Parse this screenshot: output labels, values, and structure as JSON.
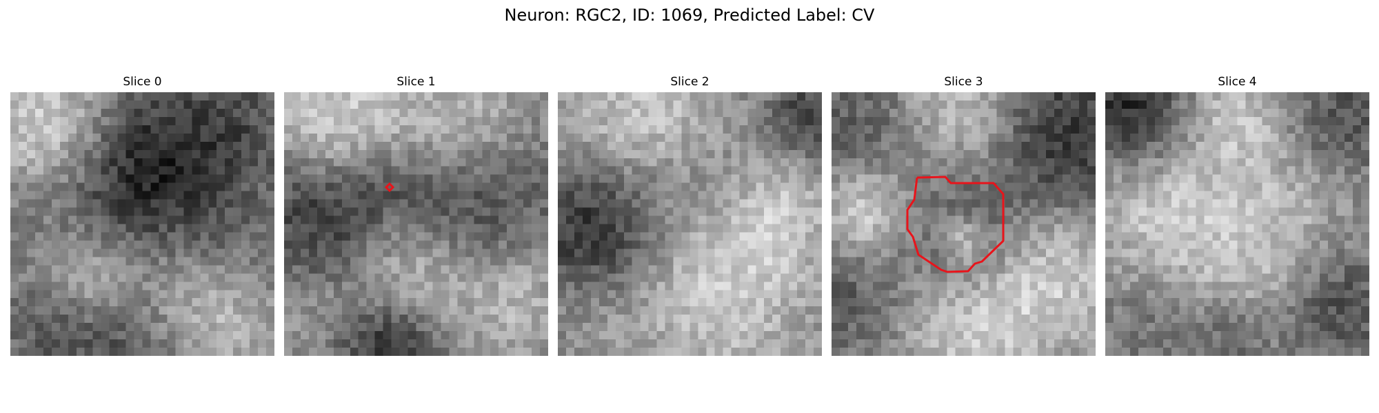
{
  "figure": {
    "title": "Neuron: RGC2, ID: 1069, Predicted Label: CV"
  },
  "panels": [
    {
      "title": "Slice 0"
    },
    {
      "title": "Slice 1"
    },
    {
      "title": "Slice 2"
    },
    {
      "title": "Slice 3"
    },
    {
      "title": "Slice 4"
    }
  ],
  "colors": {
    "contour": "#e8141b",
    "background": "#ffffff"
  }
}
